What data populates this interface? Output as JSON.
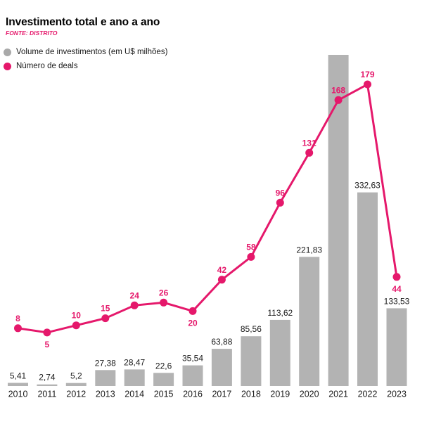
{
  "header": {
    "title": "Investimento total e ano a ano",
    "source": "FONTE: DISTRITO"
  },
  "legend": [
    {
      "label": "Volume de investimentos (em U$ milhões)"
    },
    {
      "label": "Número de deals"
    }
  ],
  "colors": {
    "accent_pink": "#e5186b",
    "bar_gray": "#b3b3b3",
    "legend_gray": "#a9a9a9",
    "text": "#1a1a1a"
  },
  "chart_data": {
    "type": "combo_bar_line",
    "title": "Investimento total e ano a ano",
    "source": "FONTE: DISTRITO",
    "categories": [
      "2010",
      "2011",
      "2012",
      "2013",
      "2014",
      "2015",
      "2016",
      "2017",
      "2018",
      "2019",
      "2020",
      "2021",
      "2022",
      "2023"
    ],
    "series": [
      {
        "name": "Volume de investimentos (em U$ milhões)",
        "type": "bar",
        "values": [
          5.41,
          2.74,
          5.2,
          27.38,
          28.47,
          22.6,
          35.54,
          63.88,
          85.56,
          113.62,
          221.83,
          null,
          332.63,
          133.53
        ],
        "value_labels": [
          "5,41",
          "2,74",
          "5,2",
          "27,38",
          "28,47",
          "22,6",
          "35,54",
          "63,88",
          "85,56",
          "113,62",
          "221,83",
          "",
          "332,63",
          "133,53"
        ]
      },
      {
        "name": "Número de deals",
        "type": "line",
        "values": [
          8,
          5,
          10,
          15,
          24,
          26,
          20,
          42,
          58,
          96,
          131,
          168,
          179,
          44
        ],
        "value_labels": [
          "8",
          "5",
          "10",
          "15",
          "24",
          "26",
          "20",
          "42",
          "58",
          "96",
          "131",
          "168",
          "179",
          "44"
        ],
        "label_positions": [
          "above",
          "below",
          "above",
          "above",
          "above",
          "above",
          "below",
          "above",
          "above",
          "above",
          "above",
          "above",
          "above",
          "below"
        ]
      }
    ],
    "notes": "2021 bar is clipped by the top edge of the image and shows no value label",
    "axes_visible": false,
    "grid": false,
    "legend_position": "top-left",
    "data_labels": true
  }
}
